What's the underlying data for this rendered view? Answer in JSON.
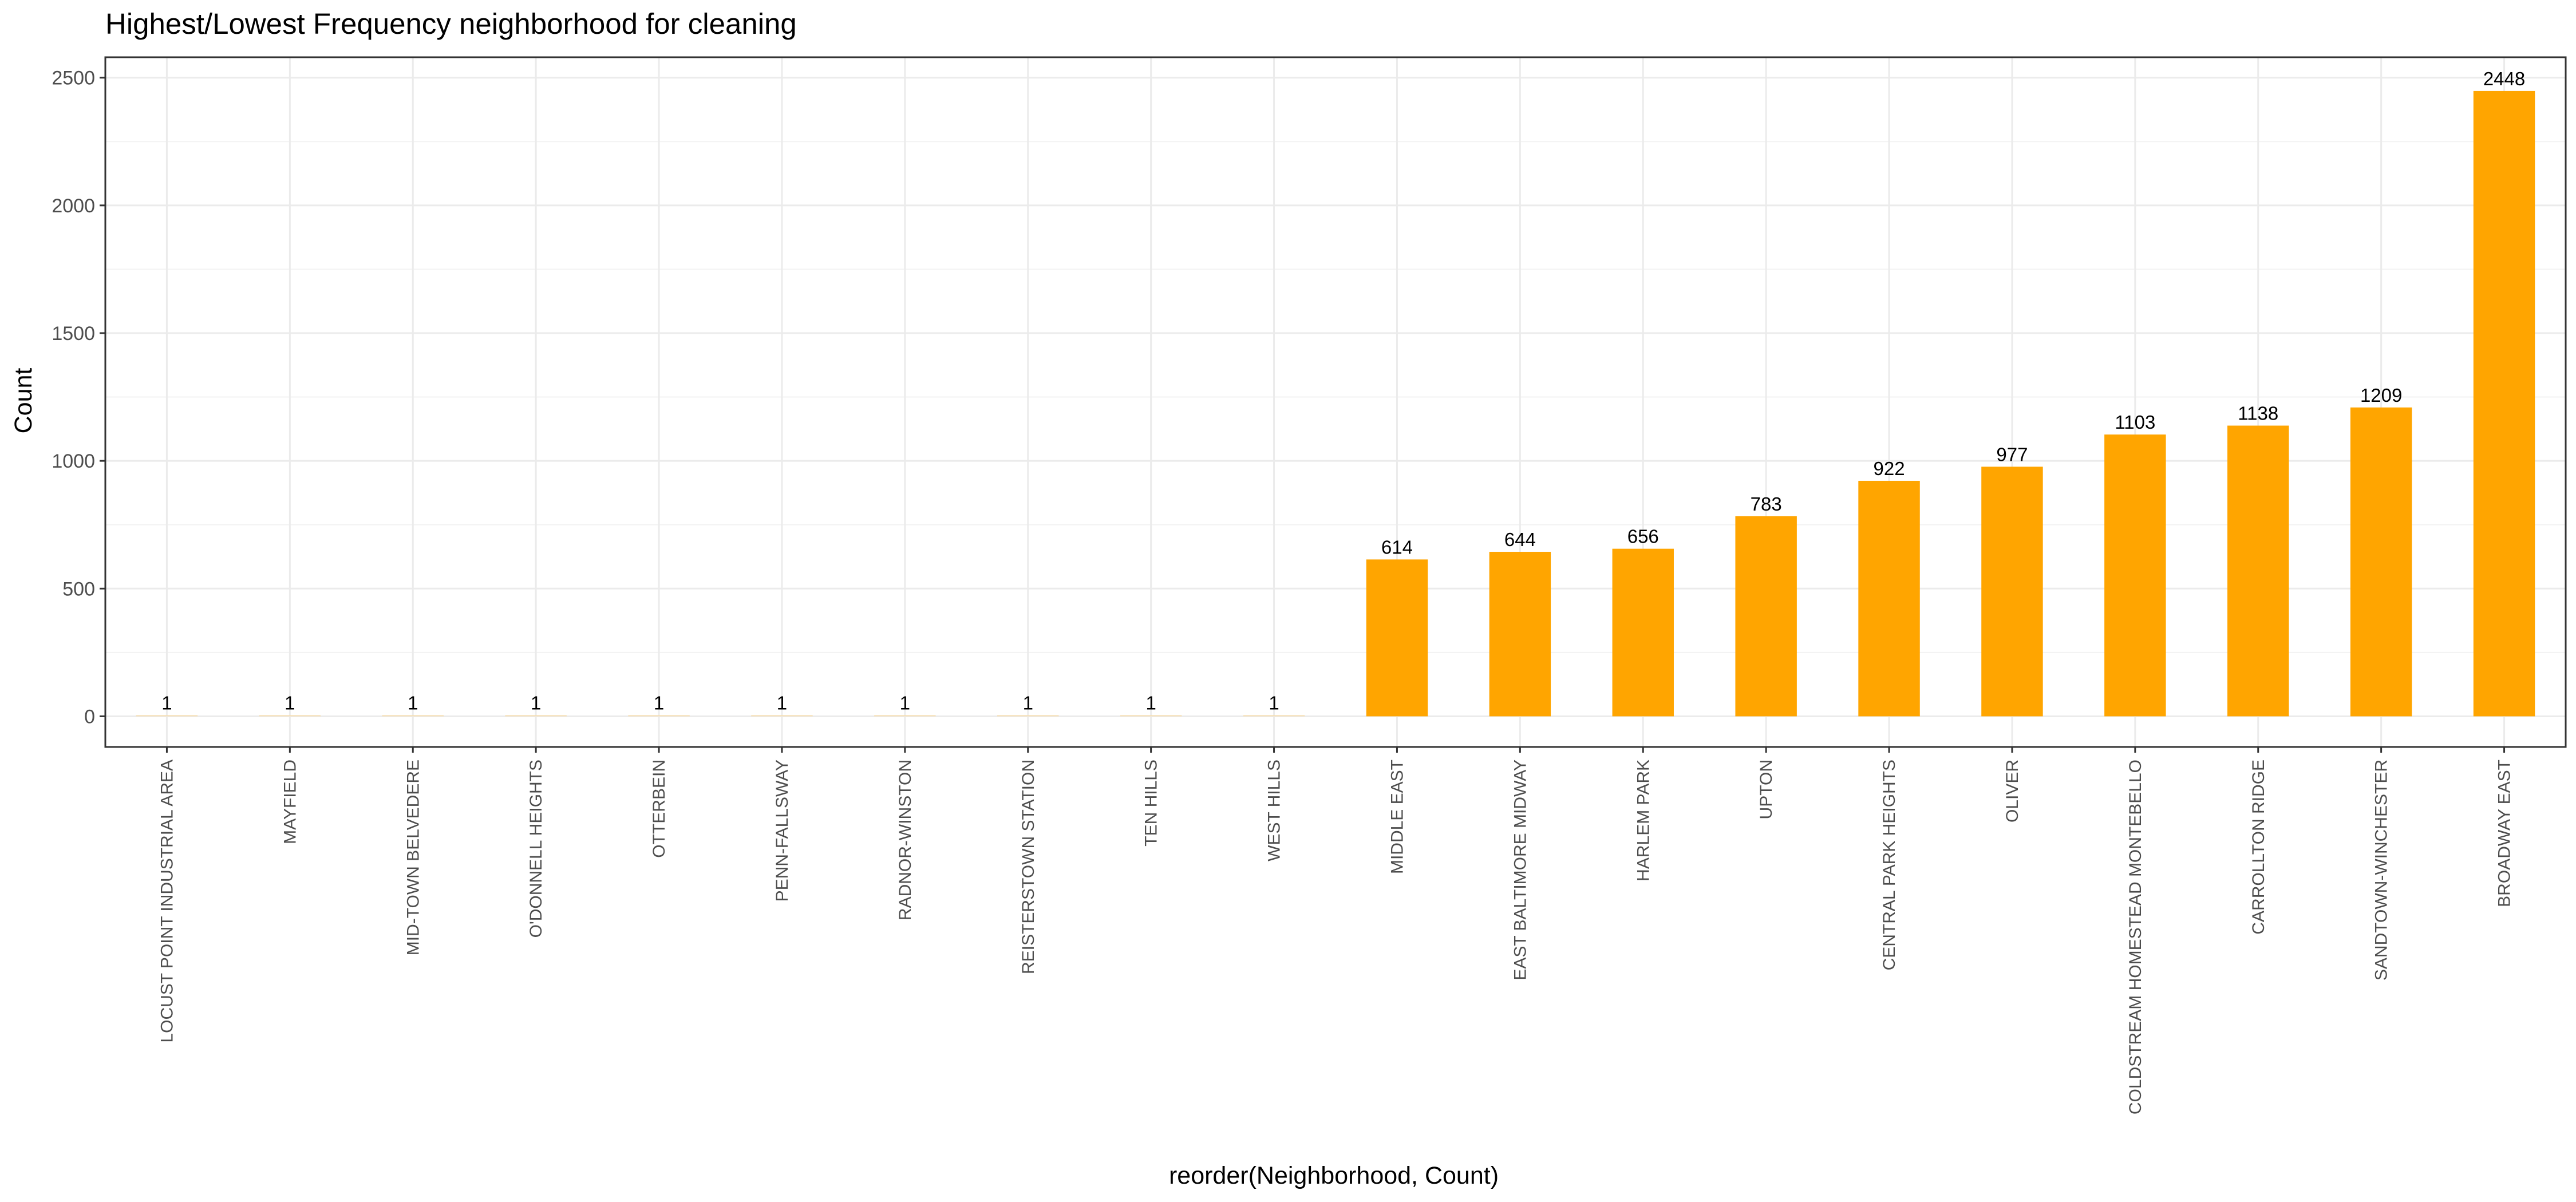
{
  "chart_data": {
    "type": "bar",
    "title": "Highest/Lowest Frequency neighborhood for cleaning",
    "xlabel": "reorder(Neighborhood, Count)",
    "ylabel": "Count",
    "ylim": [
      -120,
      2580
    ],
    "yticks": [
      0,
      500,
      1000,
      1500,
      2000,
      2500
    ],
    "grid": true,
    "legend": "none",
    "categories": [
      "LOCUST POINT INDUSTRIAL AREA",
      "MAYFIELD",
      "MID-TOWN BELVEDERE",
      "O'DONNELL HEIGHTS",
      "OTTERBEIN",
      "PENN-FALLSWAY",
      "RADNOR-WINSTON",
      "REISTERSTOWN STATION",
      "TEN HILLS",
      "WEST HILLS",
      "MIDDLE EAST",
      "EAST BALTIMORE MIDWAY",
      "HARLEM PARK",
      "UPTON",
      "CENTRAL PARK HEIGHTS",
      "OLIVER",
      "COLDSTREAM HOMESTEAD MONTEBELLO",
      "CARROLLTON RIDGE",
      "SANDTOWN-WINCHESTER",
      "BROADWAY EAST"
    ],
    "values": [
      1,
      1,
      1,
      1,
      1,
      1,
      1,
      1,
      1,
      1,
      614,
      644,
      656,
      783,
      922,
      977,
      1103,
      1138,
      1209,
      2448
    ],
    "data_labels": [
      "1",
      "1",
      "1",
      "1",
      "1",
      "1",
      "1",
      "1",
      "1",
      "1",
      "614",
      "644",
      "656",
      "783",
      "922",
      "977",
      "1103",
      "1138",
      "1209",
      "2448"
    ],
    "colors": {
      "bar": "#FFA500",
      "low_bar": "#F5DEB3"
    }
  }
}
